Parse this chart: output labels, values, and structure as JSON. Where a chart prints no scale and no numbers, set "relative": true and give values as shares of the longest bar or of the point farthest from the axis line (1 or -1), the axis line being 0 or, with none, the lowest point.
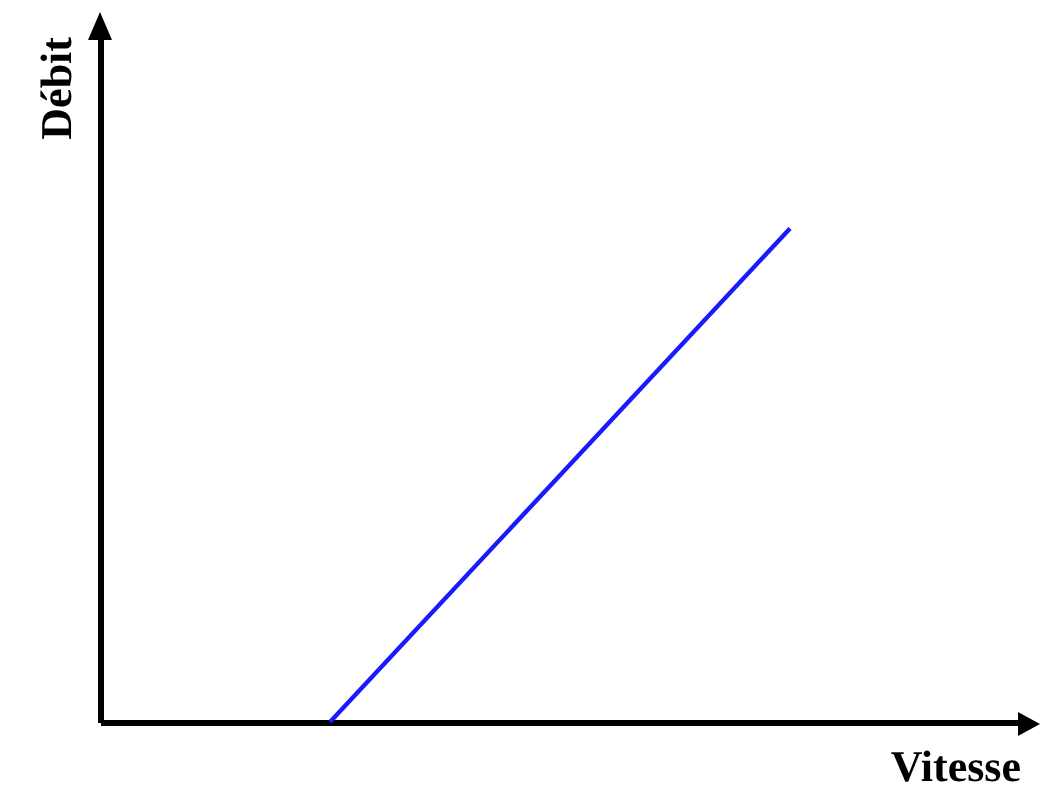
{
  "chart_data": {
    "type": "line",
    "xlabel": "Vitesse",
    "ylabel": "Débit",
    "categories": [
      null,
      null,
      null,
      null,
      null
    ],
    "relative": true,
    "grid": false,
    "series": [
      {
        "color": "#1a1aff",
        "values": [
          null,
          0,
          0.5,
          1,
          null
        ]
      }
    ]
  }
}
